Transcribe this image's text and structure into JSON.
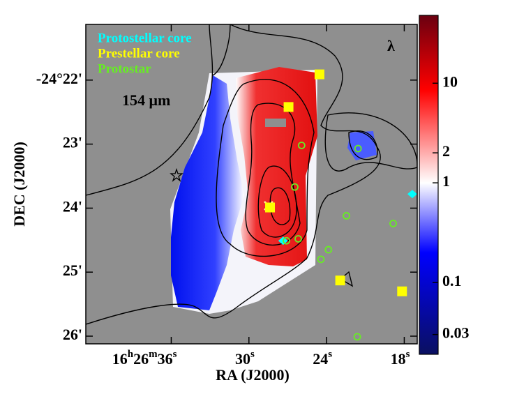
{
  "chart_data": {
    "type": "scatter",
    "annotations": [
      "154 μm",
      "λ"
    ],
    "x_label": "RA (J2000)",
    "y_label": "DEC (J2000)",
    "xlim": [
      42.6,
      17.0
    ],
    "xticks": [
      {
        "value": 36,
        "label": "16h26m36s"
      },
      {
        "value": 30,
        "label": "30s"
      },
      {
        "value": 24,
        "label": "24s"
      },
      {
        "value": 18,
        "label": "18s"
      }
    ],
    "ylim": [
      21.13,
      26.12
    ],
    "yticks": [
      {
        "value": 22,
        "label": "-24°22'"
      },
      {
        "value": 23,
        "label": "23'"
      },
      {
        "value": 24,
        "label": "24'"
      },
      {
        "value": 25,
        "label": "25'"
      },
      {
        "value": 26,
        "label": "26'"
      }
    ],
    "series": [
      {
        "name": "Protostellar core",
        "color": "#00ffff",
        "marker": "diamond",
        "x": [
          27.36,
          17.38
        ],
        "values": [
          24.51,
          23.78
        ]
      },
      {
        "name": "Prestellar core",
        "color": "#ffff00",
        "marker": "square",
        "x": [
          24.55,
          26.94,
          28.37,
          22.95,
          18.17
        ],
        "values": [
          21.91,
          22.42,
          23.99,
          25.13,
          25.3
        ]
      },
      {
        "name": "Protostar",
        "color": "#66ee22",
        "marker": "circle",
        "x": [
          25.93,
          21.57,
          26.46,
          22.47,
          18.86,
          26.19,
          27.1,
          23.86,
          24.44,
          21.63
        ],
        "values": [
          23.02,
          23.07,
          23.67,
          24.12,
          24.24,
          24.48,
          24.51,
          24.65,
          24.8,
          26.01
        ]
      }
    ],
    "colorbar": {
      "log_scale": true,
      "clim": [
        0.019,
        48
      ],
      "ticks": [
        0.03,
        0.1,
        1,
        2,
        10
      ],
      "colors": [
        "#0a1060",
        "#0000ff",
        "#ffffff",
        "#ff0000",
        "#6a0010"
      ]
    }
  }
}
